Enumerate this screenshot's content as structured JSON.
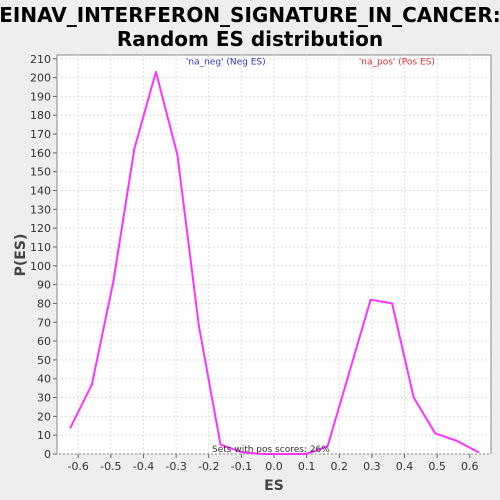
{
  "chart_data": {
    "type": "line",
    "title": "EINAV_INTERFERON_SIGNATURE_IN_CANCER:",
    "subtitle": "Random ES distribution",
    "xlabel": "ES",
    "ylabel": "P(ES)",
    "xlim": [
      -0.665,
      0.665
    ],
    "ylim": [
      0,
      212
    ],
    "x_ticks": [
      "-0.6",
      "-0.5",
      "-0.4",
      "-0.3",
      "-0.2",
      "-0.1",
      "0.0",
      "0.1",
      "0.2",
      "0.3",
      "0.4",
      "0.5",
      "0.6"
    ],
    "y_ticks": [
      "0",
      "10",
      "20",
      "30",
      "40",
      "50",
      "60",
      "70",
      "80",
      "90",
      "100",
      "110",
      "120",
      "130",
      "140",
      "150",
      "160",
      "170",
      "180",
      "190",
      "200",
      "210"
    ],
    "grid": true,
    "series": [
      {
        "color": "#ff33ff",
        "points": [
          [
            -0.624,
            14
          ],
          [
            -0.558,
            37
          ],
          [
            -0.492,
            92
          ],
          [
            -0.428,
            162
          ],
          [
            -0.362,
            203
          ],
          [
            -0.296,
            159
          ],
          [
            -0.23,
            68
          ],
          [
            -0.164,
            5
          ],
          [
            -0.1,
            1
          ],
          [
            -0.034,
            0
          ],
          [
            0.032,
            0
          ],
          [
            0.098,
            0
          ],
          [
            0.164,
            4
          ],
          [
            0.23,
            43
          ],
          [
            0.296,
            82
          ],
          [
            0.362,
            80
          ],
          [
            0.428,
            30
          ],
          [
            0.494,
            11
          ],
          [
            0.56,
            7
          ],
          [
            0.626,
            1
          ]
        ]
      }
    ],
    "annotations": [
      {
        "text": "'na_neg' (Neg ES)",
        "color": "#3333cc",
        "x": -0.27,
        "y": 207
      },
      {
        "text": "'na_pos' (Pos ES)",
        "color": "#e03030",
        "x": 0.26,
        "y": 207
      },
      {
        "text": "Sets with pos scores: 26%",
        "color": "#333333",
        "x": -0.19,
        "y": 1
      }
    ]
  }
}
